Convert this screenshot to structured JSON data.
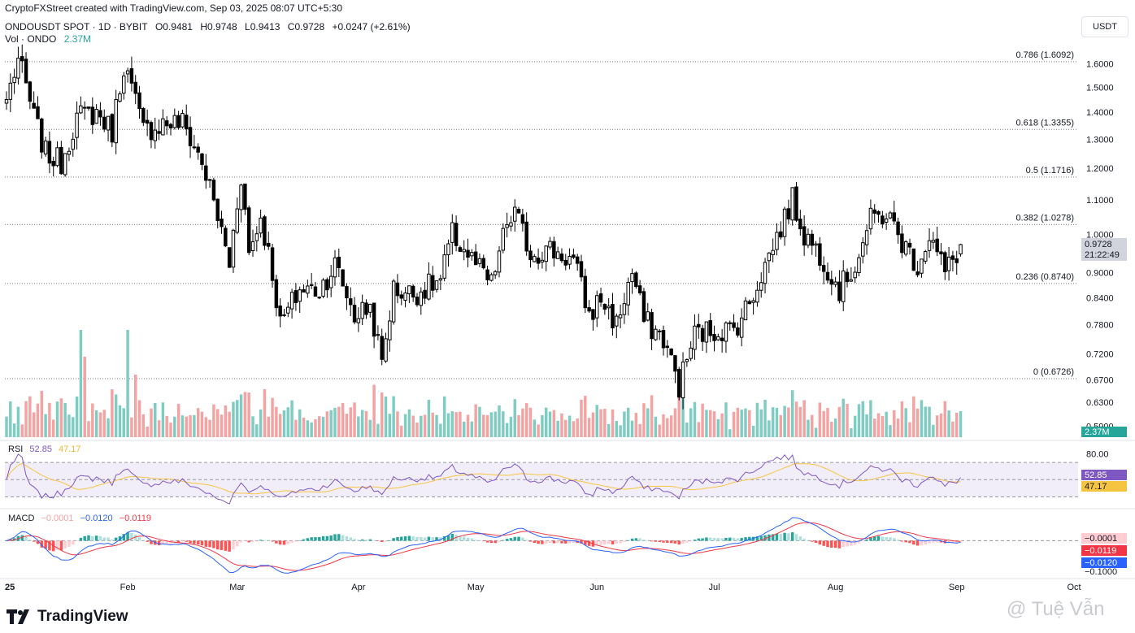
{
  "credit": "CryptoFXStreet created with TradingView.com, Sep 03, 2025 08:07 UTC+5:30",
  "symbol": {
    "title": "ONDOUSDT SPOT · 1D · BYBIT",
    "open": "O0.9481",
    "high": "H0.9748",
    "low": "L0.9413",
    "close": "C0.9728",
    "change": "+0.0247 (+2.61%)"
  },
  "volume": {
    "label": "Vol · ONDO",
    "value": "2.37M"
  },
  "currency": "USDT",
  "brand": "TradingView",
  "watermark": "@ Tuệ Vẫn",
  "colors": {
    "up": "#26a69a",
    "down": "#000000",
    "vol_up": "#7fccc3",
    "vol_down": "#f4a3a3",
    "rsi": "#7e57c2",
    "rsi_ma": "#f5c542",
    "macd": "#2962ff",
    "signal": "#f23645"
  },
  "chart_data": [
    {
      "type": "candlestick",
      "name": "price",
      "y_scale": "log",
      "ylim": [
        0.57,
        1.66
      ],
      "y_ticks": [
        "1.6000",
        "1.5000",
        "1.4000",
        "1.3000",
        "1.2000",
        "1.1000",
        "1.0000",
        "0.9000",
        "0.8400",
        "0.7800",
        "0.7200",
        "0.6700",
        "0.6300",
        "0.5900"
      ],
      "x_ticks": [
        "25",
        "Feb",
        "Mar",
        "Apr",
        "May",
        "Jun",
        "Jul",
        "Aug",
        "Sep",
        "Oct"
      ],
      "last_price": "0.9728",
      "countdown": "21:22:49",
      "fib_levels": [
        {
          "label": "0.786 (1.6092)",
          "value": 1.6092
        },
        {
          "label": "0.618 (1.3355)",
          "value": 1.3355
        },
        {
          "label": "0.5 (1.1716)",
          "value": 1.1716
        },
        {
          "label": "0.382 (1.0278)",
          "value": 1.0278
        },
        {
          "label": "0.236 (0.8740)",
          "value": 0.874
        },
        {
          "label": "0 (0.6726)",
          "value": 0.6726
        }
      ],
      "anchors": [
        {
          "date": "2025-01-01",
          "close": 1.45
        },
        {
          "date": "2025-01-04",
          "close": 1.62
        },
        {
          "date": "2025-01-08",
          "close": 1.38
        },
        {
          "date": "2025-01-11",
          "close": 1.25
        },
        {
          "date": "2025-01-15",
          "close": 1.22
        },
        {
          "date": "2025-01-19",
          "close": 1.38
        },
        {
          "date": "2025-01-24",
          "close": 1.4
        },
        {
          "date": "2025-01-28",
          "close": 1.33
        },
        {
          "date": "2025-01-31",
          "close": 1.6
        },
        {
          "date": "2025-02-05",
          "close": 1.33
        },
        {
          "date": "2025-02-10",
          "close": 1.36
        },
        {
          "date": "2025-02-15",
          "close": 1.36
        },
        {
          "date": "2025-02-20",
          "close": 1.22
        },
        {
          "date": "2025-02-24",
          "close": 1.05
        },
        {
          "date": "2025-02-27",
          "close": 0.92
        },
        {
          "date": "2025-03-02",
          "close": 1.18
        },
        {
          "date": "2025-03-04",
          "close": 0.95
        },
        {
          "date": "2025-03-07",
          "close": 1.05
        },
        {
          "date": "2025-03-10",
          "close": 0.9
        },
        {
          "date": "2025-03-12",
          "close": 0.78
        },
        {
          "date": "2025-03-17",
          "close": 0.86
        },
        {
          "date": "2025-03-22",
          "close": 0.86
        },
        {
          "date": "2025-03-26",
          "close": 0.92
        },
        {
          "date": "2025-03-31",
          "close": 0.8
        },
        {
          "date": "2025-04-04",
          "close": 0.82
        },
        {
          "date": "2025-04-07",
          "close": 0.7
        },
        {
          "date": "2025-04-10",
          "close": 0.86
        },
        {
          "date": "2025-04-15",
          "close": 0.85
        },
        {
          "date": "2025-04-22",
          "close": 0.88
        },
        {
          "date": "2025-04-25",
          "close": 1.0
        },
        {
          "date": "2025-05-01",
          "close": 0.92
        },
        {
          "date": "2025-05-05",
          "close": 0.87
        },
        {
          "date": "2025-05-09",
          "close": 1.03
        },
        {
          "date": "2025-05-11",
          "close": 1.06
        },
        {
          "date": "2025-05-15",
          "close": 0.95
        },
        {
          "date": "2025-05-20",
          "close": 0.96
        },
        {
          "date": "2025-05-26",
          "close": 0.93
        },
        {
          "date": "2025-05-30",
          "close": 0.8
        },
        {
          "date": "2025-06-02",
          "close": 0.84
        },
        {
          "date": "2025-06-06",
          "close": 0.78
        },
        {
          "date": "2025-06-10",
          "close": 0.9
        },
        {
          "date": "2025-06-13",
          "close": 0.79
        },
        {
          "date": "2025-06-18",
          "close": 0.75
        },
        {
          "date": "2025-06-22",
          "close": 0.66
        },
        {
          "date": "2025-06-26",
          "close": 0.76
        },
        {
          "date": "2025-07-02",
          "close": 0.77
        },
        {
          "date": "2025-07-06",
          "close": 0.77
        },
        {
          "date": "2025-07-10",
          "close": 0.83
        },
        {
          "date": "2025-07-14",
          "close": 0.92
        },
        {
          "date": "2025-07-18",
          "close": 1.02
        },
        {
          "date": "2025-07-21",
          "close": 1.1
        },
        {
          "date": "2025-07-24",
          "close": 1.0
        },
        {
          "date": "2025-07-28",
          "close": 0.95
        },
        {
          "date": "2025-08-02",
          "close": 0.86
        },
        {
          "date": "2025-08-06",
          "close": 0.92
        },
        {
          "date": "2025-08-10",
          "close": 1.04
        },
        {
          "date": "2025-08-14",
          "close": 1.06
        },
        {
          "date": "2025-08-18",
          "close": 0.98
        },
        {
          "date": "2025-08-22",
          "close": 0.92
        },
        {
          "date": "2025-08-25",
          "close": 1.0
        },
        {
          "date": "2025-08-29",
          "close": 0.9
        },
        {
          "date": "2025-09-01",
          "close": 0.95
        },
        {
          "date": "2025-09-02",
          "close": 0.9728
        }
      ]
    },
    {
      "type": "bar",
      "name": "volume",
      "value_label": "2.37M",
      "note_spikes": [
        {
          "date": "2025-01-20",
          "value": 4.8
        },
        {
          "date": "2025-01-21",
          "value": 3.6
        },
        {
          "date": "2025-02-01",
          "value": 4.8
        },
        {
          "date": "2025-02-03",
          "value": 2.8
        },
        {
          "date": "2025-04-07",
          "value": 2.0
        },
        {
          "date": "2025-05-11",
          "value": 1.7
        },
        {
          "date": "2025-06-22",
          "value": 1.8
        }
      ]
    },
    {
      "type": "line",
      "name": "RSI",
      "label": "RSI",
      "rsi_value": "52.85",
      "rsi_ma_value": "47.17",
      "ylim": [
        20,
        90
      ],
      "y_ticks": [
        "80.00"
      ],
      "bands": [
        70,
        50,
        30
      ]
    },
    {
      "type": "line",
      "name": "MACD",
      "label": "MACD",
      "hist_value": "−0.0001",
      "macd_value": "−0.0120",
      "signal_value": "−0.0119",
      "axis_tick": "−0.1000",
      "ylim": [
        -0.12,
        0.09
      ],
      "x_ticks": [
        "25",
        "Feb",
        "Mar",
        "Apr",
        "May",
        "Jun",
        "Jul",
        "Aug",
        "Sep",
        "Oct"
      ]
    }
  ]
}
